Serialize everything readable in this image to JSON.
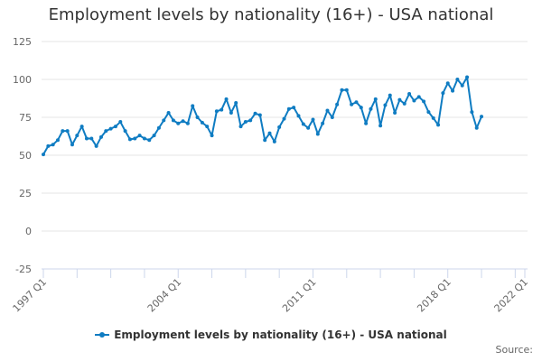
{
  "title": "Employment levels by nationality (16+) - USA national",
  "legend": {
    "label": "Employment levels by nationality (16+) - USA national",
    "color": "#0f7cc2"
  },
  "source_label": "Source:",
  "colors": {
    "series": "#0f7cc2",
    "grid": "#e6e6e6",
    "axis": "#ccd6eb",
    "text": "#666666",
    "title": "#333333"
  },
  "chart_data": {
    "type": "line",
    "title": "Employment levels by nationality (16+) - USA national",
    "xlabel": "",
    "ylabel": "",
    "ylim": [
      -25,
      125
    ],
    "yticks": [
      -25,
      0,
      25,
      50,
      75,
      100,
      125
    ],
    "xticks": [
      "1997 Q1",
      "2004 Q1",
      "2011 Q1",
      "2018 Q1",
      "2022 Q1"
    ],
    "xrange": [
      "1997 Q1",
      "2022 Q1"
    ],
    "grid": true,
    "legend_position": "bottom",
    "x_start": "1997 Q1",
    "x_end": "2019 Q4",
    "frequency": "quarterly",
    "series": [
      {
        "name": "Employment levels by nationality (16+) - USA national",
        "values": [
          50.5,
          56,
          57,
          60,
          66,
          66,
          57,
          63,
          69,
          61,
          61,
          56,
          62,
          66,
          67.5,
          69,
          72,
          66,
          60.5,
          61,
          63,
          61,
          60,
          63,
          68,
          73,
          78,
          73,
          71,
          72.5,
          71,
          82.5,
          75,
          71.5,
          69,
          63,
          79,
          80,
          87,
          78,
          84.5,
          69,
          72,
          73,
          77.5,
          76.5,
          60,
          64.5,
          59,
          68.5,
          74,
          80.5,
          81.5,
          76,
          70.5,
          68,
          73.5,
          64,
          71,
          79.5,
          75,
          83.5,
          93,
          93,
          83.5,
          85,
          81.5,
          71,
          80.5,
          87,
          69.5,
          83,
          89.5,
          78,
          86.5,
          84,
          90.5,
          86,
          88.5,
          85.5,
          78.5,
          74.5,
          70,
          91,
          97.5,
          92.5,
          100,
          96,
          101.5,
          78.5,
          68,
          75.5
        ]
      }
    ]
  }
}
